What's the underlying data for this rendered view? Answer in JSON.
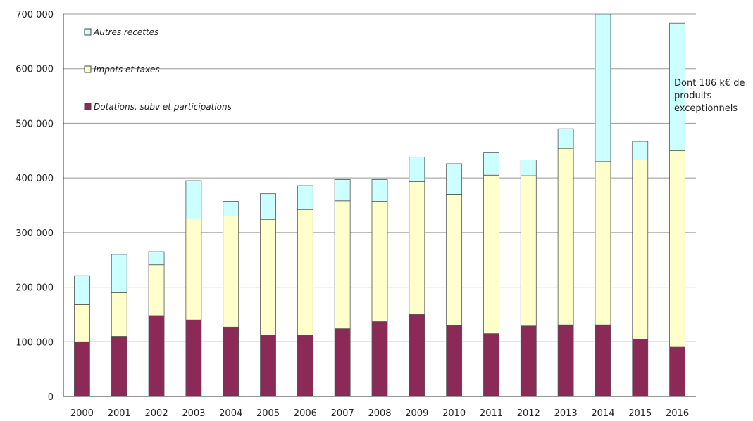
{
  "chart_data": {
    "type": "bar",
    "stacked": true,
    "categories": [
      "2000",
      "2001",
      "2002",
      "2003",
      "2004",
      "2005",
      "2006",
      "2007",
      "2008",
      "2009",
      "2010",
      "2011",
      "2012",
      "2013",
      "2014",
      "2015",
      "2016"
    ],
    "series": [
      {
        "name": "Dotations, subv et participations",
        "color": "#8B2A57",
        "values": [
          100000,
          110000,
          148000,
          140000,
          127000,
          112000,
          112000,
          124000,
          137000,
          150000,
          130000,
          115000,
          129000,
          131000,
          131000,
          105000,
          90000
        ]
      },
      {
        "name": "Impots et taxes",
        "color": "#FFFFCC",
        "values": [
          68000,
          80000,
          93000,
          185000,
          203000,
          212000,
          230000,
          234000,
          220000,
          243000,
          240000,
          290000,
          275000,
          323000,
          299000,
          328000,
          360000
        ]
      },
      {
        "name": "Autres recettes",
        "color": "#CCFFFF",
        "values": [
          53000,
          70000,
          24000,
          70000,
          27000,
          47000,
          44000,
          39000,
          40000,
          45000,
          56000,
          42000,
          29000,
          36000,
          270000,
          34000,
          233000
        ]
      }
    ],
    "ylim": [
      0,
      700000
    ],
    "yticks": [
      "0",
      "100 000",
      "200 000",
      "300 000",
      "400 000",
      "500 000",
      "600 000",
      "700 000"
    ],
    "grid": true,
    "legend_position": "top-left",
    "annotation": [
      "Dont 186 k€ de",
      "produits",
      "exceptionnels"
    ]
  }
}
